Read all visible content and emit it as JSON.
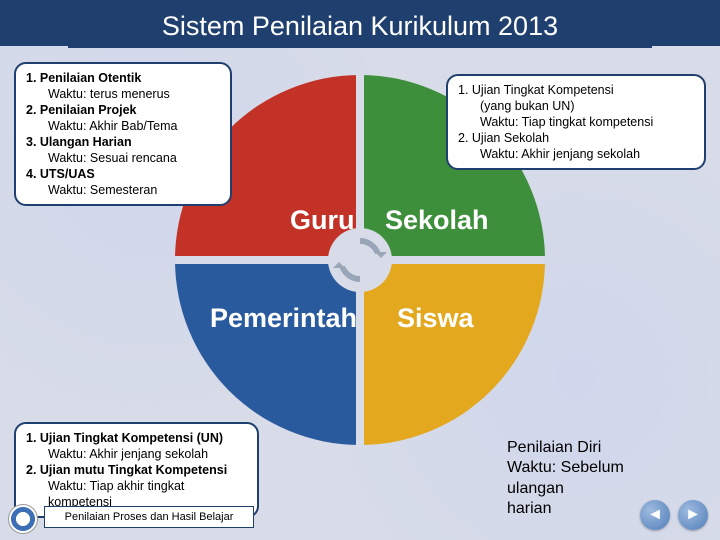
{
  "title": "Sistem Penilaian Kurikulum 2013",
  "chart": {
    "type": "pie-quadrant",
    "quadrants": {
      "top_left": {
        "label": "Guru",
        "color": "#c33226"
      },
      "top_right": {
        "label": "Sekolah",
        "color": "#3d8f3b"
      },
      "bottom_left": {
        "label": "Pemerintah",
        "color": "#2a5a9e"
      },
      "bottom_right": {
        "label": "Siswa",
        "color": "#e4a81e"
      }
    },
    "background_color": "#d8dce8",
    "label_fontsize": 27,
    "label_color": "#ffffff",
    "center_arrow_color": "#9aa6b8"
  },
  "boxes": {
    "guru": {
      "items": [
        {
          "t": "1. Penilaian Otentik",
          "bold": true
        },
        {
          "t": "Waktu: terus menerus",
          "indent": true
        },
        {
          "t": "2. Penilaian Projek",
          "bold": true
        },
        {
          "t": "Waktu: Akhir Bab/Tema",
          "indent": true
        },
        {
          "t": "3. Ulangan Harian",
          "bold": true
        },
        {
          "t": "Waktu: Sesuai rencana",
          "indent": true
        },
        {
          "t": "4. UTS/UAS",
          "bold": true
        },
        {
          "t": "Waktu: Semesteran",
          "indent": true
        }
      ]
    },
    "sekolah": {
      "items": [
        {
          "t": "1.  Ujian Tingkat Kompetensi"
        },
        {
          "t": "(yang bukan UN)",
          "indent": true
        },
        {
          "t": "Waktu: Tiap tingkat kompetensi",
          "indent": true
        },
        {
          "t": "2. Ujian Sekolah"
        },
        {
          "t": "Waktu: Akhir jenjang sekolah",
          "indent": true
        }
      ]
    },
    "pemerintah": {
      "items": [
        {
          "t": "1. Ujian Tingkat Kompetensi (UN)",
          "bold": true
        },
        {
          "t": "Waktu: Akhir jenjang sekolah",
          "indent": true
        },
        {
          "t": "2. Ujian mutu Tingkat Kompetensi",
          "bold": true
        },
        {
          "t": "Waktu: Tiap akhir tingkat",
          "indent": true
        },
        {
          "t": "kompetensi",
          "indent": true
        }
      ]
    },
    "siswa": {
      "line1": "Penilaian Diri",
      "line2": "Waktu: Sebelum ulangan",
      "line3": "harian"
    }
  },
  "footer_button": "Penilaian Proses dan Hasil Belajar",
  "nav": {
    "prev": "◄",
    "next": "►"
  },
  "box_border_color": "#1f3f6e",
  "title_bg": "#1f3f6e"
}
